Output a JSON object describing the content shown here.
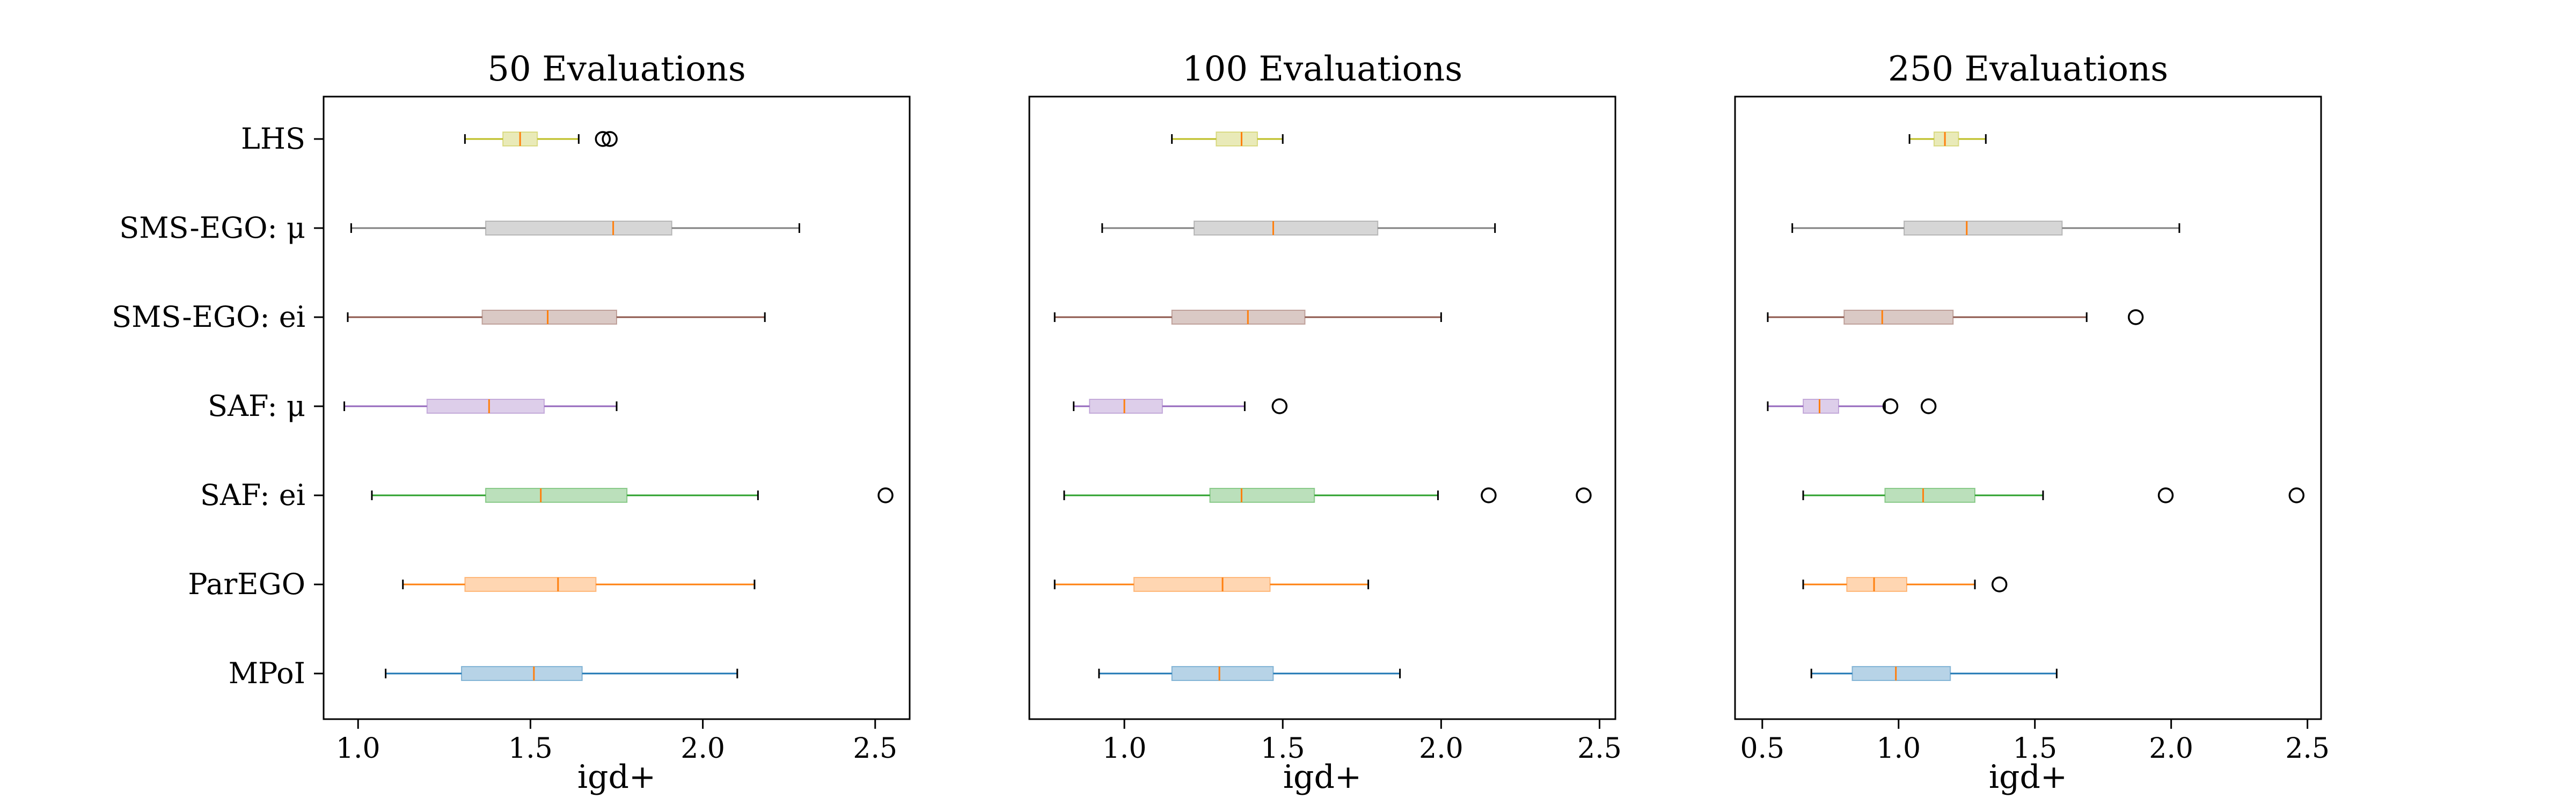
{
  "chart_data": [
    {
      "type": "box",
      "orientation": "horizontal",
      "title": "50 Evaluations",
      "xlabel": "igd+",
      "xlim": [
        0.9,
        2.6
      ],
      "xticks": [
        1.0,
        1.5,
        2.0,
        2.5
      ],
      "xtick_labels": [
        "1.0",
        "1.5",
        "2.0",
        "2.5"
      ],
      "series": [
        {
          "name": "MPoI",
          "color": "#1f77b4",
          "whisker_low": 1.08,
          "q1": 1.3,
          "median": 1.51,
          "q3": 1.65,
          "whisker_high": 2.1,
          "outliers": []
        },
        {
          "name": "ParEGO",
          "color": "#ff7f0e",
          "whisker_low": 1.13,
          "q1": 1.31,
          "median": 1.58,
          "q3": 1.69,
          "whisker_high": 2.15,
          "outliers": []
        },
        {
          "name": "SAF: ei",
          "color": "#2ca02c",
          "whisker_low": 1.04,
          "q1": 1.37,
          "median": 1.53,
          "q3": 1.78,
          "whisker_high": 2.16,
          "outliers": [
            2.53
          ]
        },
        {
          "name": "SAF: μ",
          "color": "#9467bd",
          "whisker_low": 0.96,
          "q1": 1.2,
          "median": 1.38,
          "q3": 1.54,
          "whisker_high": 1.75,
          "outliers": []
        },
        {
          "name": "SMS-EGO: ei",
          "color": "#8c564b",
          "whisker_low": 0.97,
          "q1": 1.36,
          "median": 1.55,
          "q3": 1.75,
          "whisker_high": 2.18,
          "outliers": []
        },
        {
          "name": "SMS-EGO: μ",
          "color": "#7f7f7f",
          "whisker_low": 0.98,
          "q1": 1.37,
          "median": 1.74,
          "q3": 1.91,
          "whisker_high": 2.28,
          "outliers": []
        },
        {
          "name": "LHS",
          "color": "#bcbd22",
          "whisker_low": 1.31,
          "q1": 1.42,
          "median": 1.47,
          "q3": 1.52,
          "whisker_high": 1.64,
          "outliers": [
            1.71,
            1.73
          ]
        }
      ]
    },
    {
      "type": "box",
      "orientation": "horizontal",
      "title": "100 Evaluations",
      "xlabel": "igd+",
      "xlim": [
        0.7,
        2.55
      ],
      "xticks": [
        1.0,
        1.5,
        2.0,
        2.5
      ],
      "xtick_labels": [
        "1.0",
        "1.5",
        "2.0",
        "2.5"
      ],
      "series": [
        {
          "name": "MPoI",
          "color": "#1f77b4",
          "whisker_low": 0.92,
          "q1": 1.15,
          "median": 1.3,
          "q3": 1.47,
          "whisker_high": 1.87,
          "outliers": []
        },
        {
          "name": "ParEGO",
          "color": "#ff7f0e",
          "whisker_low": 0.78,
          "q1": 1.03,
          "median": 1.31,
          "q3": 1.46,
          "whisker_high": 1.77,
          "outliers": []
        },
        {
          "name": "SAF: ei",
          "color": "#2ca02c",
          "whisker_low": 0.81,
          "q1": 1.27,
          "median": 1.37,
          "q3": 1.6,
          "whisker_high": 1.99,
          "outliers": [
            2.15,
            2.45
          ]
        },
        {
          "name": "SAF: μ",
          "color": "#9467bd",
          "whisker_low": 0.84,
          "q1": 0.89,
          "median": 1.0,
          "q3": 1.12,
          "whisker_high": 1.38,
          "outliers": [
            1.49
          ]
        },
        {
          "name": "SMS-EGO: ei",
          "color": "#8c564b",
          "whisker_low": 0.78,
          "q1": 1.15,
          "median": 1.39,
          "q3": 1.57,
          "whisker_high": 2.0,
          "outliers": []
        },
        {
          "name": "SMS-EGO: μ",
          "color": "#7f7f7f",
          "whisker_low": 0.93,
          "q1": 1.22,
          "median": 1.47,
          "q3": 1.8,
          "whisker_high": 2.17,
          "outliers": []
        },
        {
          "name": "LHS",
          "color": "#bcbd22",
          "whisker_low": 1.15,
          "q1": 1.29,
          "median": 1.37,
          "q3": 1.42,
          "whisker_high": 1.5,
          "outliers": []
        }
      ]
    },
    {
      "type": "box",
      "orientation": "horizontal",
      "title": "250 Evaluations",
      "xlabel": "igd+",
      "xlim": [
        0.4,
        2.55
      ],
      "xticks": [
        0.5,
        1.0,
        1.5,
        2.0,
        2.5
      ],
      "xtick_labels": [
        "0.5",
        "1.0",
        "1.5",
        "2.0",
        "2.5"
      ],
      "series": [
        {
          "name": "MPoI",
          "color": "#1f77b4",
          "whisker_low": 0.68,
          "q1": 0.83,
          "median": 0.99,
          "q3": 1.19,
          "whisker_high": 1.58,
          "outliers": []
        },
        {
          "name": "ParEGO",
          "color": "#ff7f0e",
          "whisker_low": 0.65,
          "q1": 0.81,
          "median": 0.91,
          "q3": 1.03,
          "whisker_high": 1.28,
          "outliers": [
            1.37
          ]
        },
        {
          "name": "SAF: ei",
          "color": "#2ca02c",
          "whisker_low": 0.65,
          "q1": 0.95,
          "median": 1.09,
          "q3": 1.28,
          "whisker_high": 1.53,
          "outliers": [
            1.98,
            2.46
          ]
        },
        {
          "name": "SAF: μ",
          "color": "#9467bd",
          "whisker_low": 0.52,
          "q1": 0.65,
          "median": 0.71,
          "q3": 0.78,
          "whisker_high": 0.95,
          "outliers": [
            0.97,
            1.11
          ]
        },
        {
          "name": "SMS-EGO: ei",
          "color": "#8c564b",
          "whisker_low": 0.52,
          "q1": 0.8,
          "median": 0.94,
          "q3": 1.2,
          "whisker_high": 1.69,
          "outliers": [
            1.87
          ]
        },
        {
          "name": "SMS-EGO: μ",
          "color": "#7f7f7f",
          "whisker_low": 0.61,
          "q1": 1.02,
          "median": 1.25,
          "q3": 1.6,
          "whisker_high": 2.03,
          "outliers": []
        },
        {
          "name": "LHS",
          "color": "#bcbd22",
          "whisker_low": 1.04,
          "q1": 1.13,
          "median": 1.17,
          "q3": 1.22,
          "whisker_high": 1.32,
          "outliers": []
        }
      ]
    }
  ],
  "median_color": "#ff7f0e"
}
